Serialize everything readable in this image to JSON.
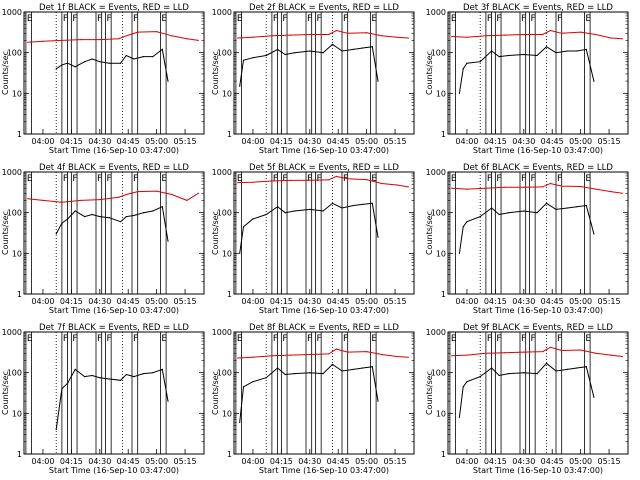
{
  "chart_data": {
    "type": "line",
    "yscale": "log",
    "ylim": [
      1,
      1000
    ],
    "xlim_minutes": [
      "03:50",
      "05:25"
    ],
    "y_ticks": [
      "1",
      "10",
      "100",
      "1000"
    ],
    "x_ticks": [
      "04:00",
      "04:15",
      "04:30",
      "04:45",
      "05:00",
      "05:15"
    ],
    "ylabel": "Counts/sec",
    "xlabel": "Start Time (16-Sep-10 03:47:00)",
    "series_colors": {
      "events": "#000000",
      "lld": "#e00000"
    },
    "flag_marks": [
      {
        "label": "F",
        "start": "04:10",
        "end": "04:13"
      },
      {
        "label": "F",
        "start": "04:15",
        "end": "04:18"
      },
      {
        "label": "F",
        "start": "04:28",
        "end": "04:31"
      },
      {
        "label": "F",
        "start": "04:33",
        "end": "04:36"
      },
      {
        "label": "F",
        "start": "04:47",
        "end": "04:50"
      },
      {
        "label": "E",
        "start": "05:02",
        "end": "05:05"
      },
      {
        "label": "E",
        "start": "03:51",
        "end": "03:54"
      }
    ],
    "dotted_lines": [
      "04:07",
      "04:42"
    ],
    "panels": [
      {
        "title": "Det 1f  BLACK = Events, RED = LLD",
        "events": {
          "x": [
            "04:07",
            "04:10",
            "04:13",
            "04:17",
            "04:22",
            "04:26",
            "04:30",
            "04:35",
            "04:41",
            "04:44",
            "04:48",
            "04:53",
            "04:58",
            "05:03",
            "05:06"
          ],
          "y": [
            40,
            50,
            55,
            45,
            60,
            70,
            60,
            55,
            55,
            85,
            70,
            80,
            80,
            120,
            20
          ]
        },
        "lld": {
          "x": [
            "03:52",
            "04:00",
            "04:10",
            "04:20",
            "04:30",
            "04:40",
            "04:44",
            "04:50",
            "05:00",
            "05:08",
            "05:16",
            "05:22"
          ],
          "y": [
            180,
            190,
            200,
            210,
            210,
            220,
            260,
            320,
            330,
            260,
            220,
            200
          ]
        }
      },
      {
        "title": "Det 2f  BLACK = Events, RED = LLD",
        "events": {
          "x": [
            "03:53",
            "03:55",
            "04:00",
            "04:07",
            "04:13",
            "04:17",
            "04:22",
            "04:30",
            "04:37",
            "04:42",
            "04:47",
            "04:53",
            "04:58",
            "05:03",
            "05:06"
          ],
          "y": [
            15,
            65,
            75,
            85,
            120,
            90,
            100,
            110,
            100,
            160,
            110,
            120,
            130,
            140,
            20
          ]
        },
        "lld": {
          "x": [
            "03:52",
            "04:00",
            "04:10",
            "04:20",
            "04:30",
            "04:40",
            "04:44",
            "04:50",
            "05:00",
            "05:08",
            "05:16",
            "05:22"
          ],
          "y": [
            230,
            240,
            260,
            270,
            280,
            280,
            350,
            300,
            310,
            260,
            240,
            230
          ]
        }
      },
      {
        "title": "Det 3f  BLACK = Events, RED = LLD",
        "events": {
          "x": [
            "03:56",
            "03:58",
            "04:00",
            "04:07",
            "04:13",
            "04:17",
            "04:22",
            "04:30",
            "04:37",
            "04:42",
            "04:47",
            "04:53",
            "04:58",
            "05:03",
            "05:07"
          ],
          "y": [
            10,
            40,
            55,
            60,
            110,
            80,
            85,
            90,
            85,
            140,
            100,
            110,
            110,
            120,
            20
          ]
        },
        "lld": {
          "x": [
            "03:52",
            "04:00",
            "04:10",
            "04:20",
            "04:30",
            "04:40",
            "04:44",
            "04:50",
            "05:00",
            "05:08",
            "05:16",
            "05:22"
          ],
          "y": [
            250,
            240,
            260,
            270,
            280,
            280,
            350,
            300,
            320,
            280,
            230,
            220
          ]
        }
      },
      {
        "title": "Det 4f  BLACK = Events, RED = LLD",
        "events": {
          "x": [
            "04:07",
            "04:10",
            "04:13",
            "04:17",
            "04:22",
            "04:26",
            "04:30",
            "04:35",
            "04:41",
            "04:44",
            "04:48",
            "04:53",
            "04:58",
            "05:03",
            "05:06"
          ],
          "y": [
            30,
            55,
            70,
            110,
            80,
            90,
            80,
            75,
            60,
            80,
            85,
            100,
            110,
            140,
            20
          ]
        },
        "lld": {
          "x": [
            "03:52",
            "04:00",
            "04:10",
            "04:20",
            "04:30",
            "04:40",
            "04:44",
            "04:50",
            "05:00",
            "05:08",
            "05:16",
            "05:22"
          ],
          "y": [
            220,
            200,
            180,
            200,
            210,
            240,
            280,
            330,
            340,
            280,
            200,
            300
          ]
        }
      },
      {
        "title": "Det 5f  BLACK = Events, RED = LLD",
        "events": {
          "x": [
            "03:53",
            "03:55",
            "04:00",
            "04:07",
            "04:13",
            "04:17",
            "04:22",
            "04:30",
            "04:37",
            "04:42",
            "04:47",
            "04:53",
            "04:58",
            "05:03",
            "05:06"
          ],
          "y": [
            10,
            45,
            70,
            90,
            140,
            100,
            110,
            120,
            110,
            170,
            130,
            150,
            160,
            170,
            25
          ]
        },
        "lld": {
          "x": [
            "03:52",
            "04:00",
            "04:10",
            "04:20",
            "04:30",
            "04:40",
            "04:44",
            "04:50",
            "05:00",
            "05:08",
            "05:16",
            "05:22"
          ],
          "y": [
            550,
            560,
            600,
            620,
            630,
            640,
            780,
            680,
            650,
            520,
            480,
            430
          ]
        }
      },
      {
        "title": "Det 6f  BLACK = Events, RED = LLD",
        "events": {
          "x": [
            "03:56",
            "03:58",
            "04:00",
            "04:07",
            "04:13",
            "04:17",
            "04:22",
            "04:30",
            "04:37",
            "04:42",
            "04:47",
            "04:53",
            "04:58",
            "05:03",
            "05:07"
          ],
          "y": [
            10,
            45,
            60,
            80,
            130,
            90,
            100,
            110,
            100,
            170,
            120,
            130,
            140,
            150,
            30
          ]
        },
        "lld": {
          "x": [
            "03:52",
            "04:00",
            "04:10",
            "04:20",
            "04:30",
            "04:40",
            "04:44",
            "04:50",
            "05:00",
            "05:08",
            "05:16",
            "05:22"
          ],
          "y": [
            400,
            380,
            400,
            420,
            420,
            430,
            520,
            450,
            440,
            380,
            330,
            300
          ]
        }
      },
      {
        "title": "Det 7f  BLACK = Events, RED = LLD",
        "events": {
          "x": [
            "04:07",
            "04:10",
            "04:13",
            "04:17",
            "04:22",
            "04:26",
            "04:30",
            "04:35",
            "04:41",
            "04:44",
            "04:48",
            "04:53",
            "04:58",
            "05:03",
            "05:06"
          ],
          "y": [
            4,
            40,
            55,
            120,
            80,
            85,
            75,
            70,
            65,
            90,
            80,
            95,
            100,
            120,
            20
          ]
        },
        "lld": null
      },
      {
        "title": "Det 8f  BLACK = Events, RED = LLD",
        "events": {
          "x": [
            "03:53",
            "03:55",
            "04:00",
            "04:07",
            "04:13",
            "04:17",
            "04:22",
            "04:30",
            "04:37",
            "04:42",
            "04:47",
            "04:53",
            "04:58",
            "05:03",
            "05:06"
          ],
          "y": [
            6,
            45,
            60,
            75,
            130,
            90,
            95,
            100,
            95,
            160,
            110,
            120,
            130,
            140,
            20
          ]
        },
        "lld": {
          "x": [
            "03:52",
            "04:00",
            "04:10",
            "04:20",
            "04:30",
            "04:40",
            "04:44",
            "04:50",
            "05:00",
            "05:08",
            "05:16",
            "05:22"
          ],
          "y": [
            230,
            240,
            260,
            270,
            280,
            290,
            380,
            320,
            330,
            280,
            250,
            240
          ]
        }
      },
      {
        "title": "Det 9f  BLACK = Events, RED = LLD",
        "events": {
          "x": [
            "03:56",
            "03:58",
            "04:00",
            "04:07",
            "04:13",
            "04:17",
            "04:22",
            "04:30",
            "04:37",
            "04:42",
            "04:47",
            "04:53",
            "04:58",
            "05:03",
            "05:07"
          ],
          "y": [
            8,
            45,
            60,
            80,
            130,
            85,
            95,
            100,
            95,
            170,
            110,
            120,
            130,
            140,
            25
          ]
        },
        "lld": {
          "x": [
            "03:52",
            "04:00",
            "04:10",
            "04:20",
            "04:30",
            "04:40",
            "04:44",
            "04:50",
            "05:00",
            "05:08",
            "05:16",
            "05:22"
          ],
          "y": [
            260,
            270,
            300,
            310,
            320,
            330,
            420,
            350,
            360,
            300,
            270,
            250
          ]
        }
      }
    ]
  }
}
